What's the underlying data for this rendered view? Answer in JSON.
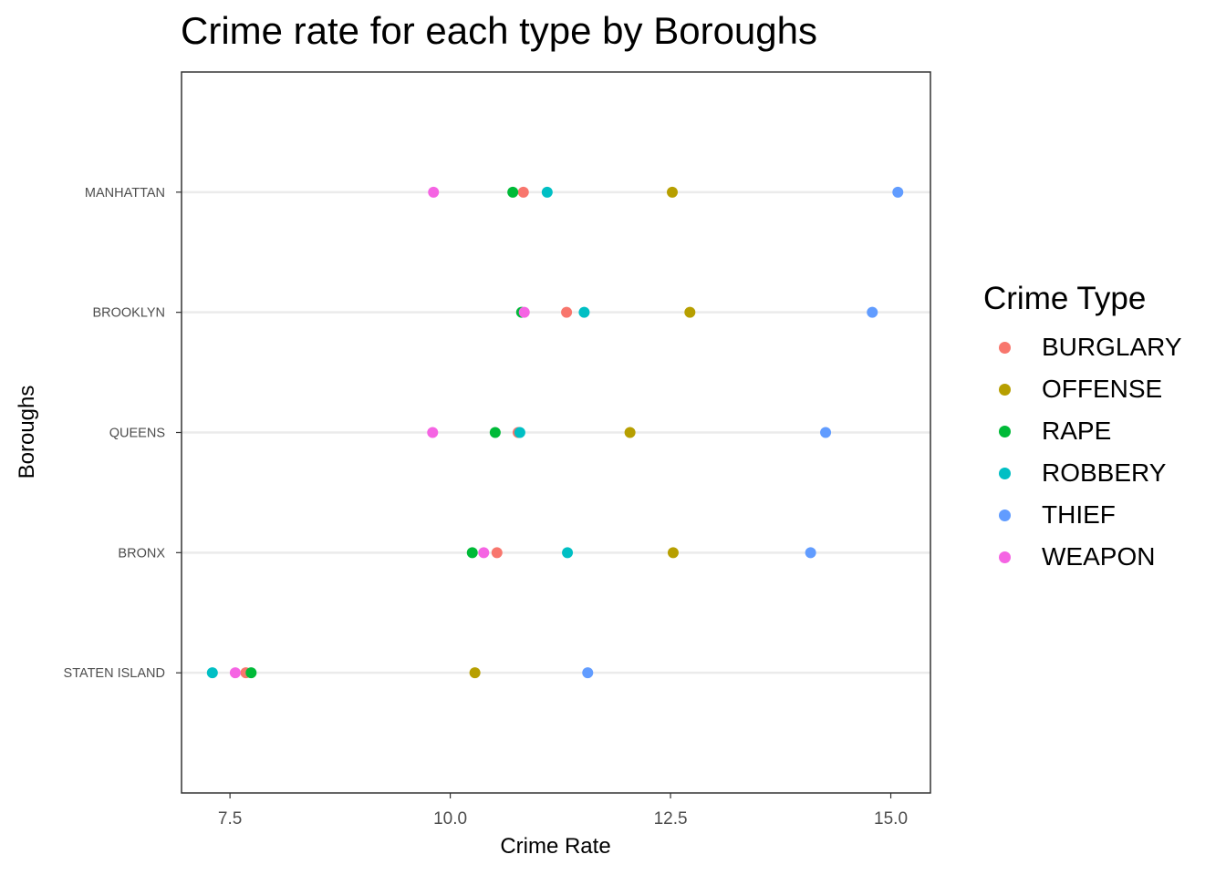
{
  "chart_data": {
    "type": "scatter",
    "title": "Crime rate for each type by Boroughs",
    "xlabel": "Crime Rate",
    "ylabel": "Boroughs",
    "xlim": [
      6.95,
      15.45
    ],
    "xticks": [
      7.5,
      10.0,
      12.5,
      15.0
    ],
    "xtick_labels": [
      "7.5",
      "10.0",
      "12.5",
      "15.0"
    ],
    "categories": [
      "MANHATTAN",
      "BROOKLYN",
      "QUEENS",
      "BRONX",
      "STATEN ISLAND"
    ],
    "legend_title": "Crime Type",
    "legend_position": "right",
    "grid": "horizontal-major",
    "series": [
      {
        "name": "BURGLARY",
        "color": "#F8766D",
        "values": [
          10.83,
          11.32,
          10.77,
          10.53,
          7.68
        ]
      },
      {
        "name": "OFFENSE",
        "color": "#B79F00",
        "values": [
          12.52,
          12.72,
          12.04,
          12.53,
          10.28
        ]
      },
      {
        "name": "RAPE",
        "color": "#00BA38",
        "values": [
          10.71,
          10.81,
          10.51,
          10.25,
          7.74
        ]
      },
      {
        "name": "ROBBERY",
        "color": "#00BFC4",
        "values": [
          11.1,
          11.52,
          10.79,
          11.33,
          7.3
        ]
      },
      {
        "name": "THIEF",
        "color": "#619CFF",
        "values": [
          15.08,
          14.79,
          14.26,
          14.09,
          11.56
        ]
      },
      {
        "name": "WEAPON",
        "color": "#F564E3",
        "values": [
          9.81,
          10.84,
          9.8,
          10.38,
          7.56
        ]
      }
    ]
  }
}
